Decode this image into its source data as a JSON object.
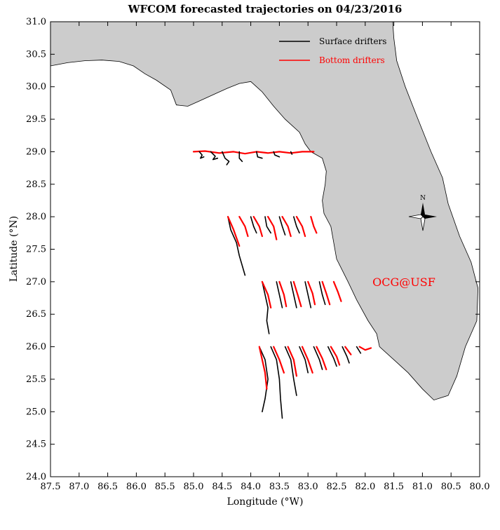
{
  "title": "WFCOM forecasted trajectories on 04/23/2016",
  "xlabel": "Longitude (°W)",
  "ylabel": "Latitude (°N)",
  "xlim": [
    87.5,
    80.0
  ],
  "ylim": [
    24.0,
    31.0
  ],
  "x_ticks": [
    "87.5",
    "87.0",
    "86.5",
    "86.0",
    "85.5",
    "85.0",
    "84.5",
    "84.0",
    "83.5",
    "83.0",
    "82.5",
    "82.0",
    "81.5",
    "81.0",
    "80.5",
    "80.0"
  ],
  "y_ticks": [
    "24.0",
    "24.5",
    "25.0",
    "25.5",
    "26.0",
    "26.5",
    "27.0",
    "27.5",
    "28.0",
    "28.5",
    "29.0",
    "29.5",
    "30.0",
    "30.5",
    "31.0"
  ],
  "legend": [
    {
      "label": "Surface drifters",
      "color": "#000000"
    },
    {
      "label": "Bottom drifters",
      "color": "#ff0000"
    }
  ],
  "compass_label": "N",
  "watermark": "OCG@USF",
  "colors": {
    "land": "#cccccc",
    "surface": "#000000",
    "bottom": "#ff0000",
    "watermark": "#ff0000"
  },
  "land_polygon": [
    [
      87.5,
      30.32
    ],
    [
      87.2,
      30.37
    ],
    [
      86.9,
      30.4
    ],
    [
      86.6,
      30.41
    ],
    [
      86.3,
      30.39
    ],
    [
      86.05,
      30.32
    ],
    [
      85.85,
      30.2
    ],
    [
      85.65,
      30.1
    ],
    [
      85.4,
      29.95
    ],
    [
      85.3,
      29.72
    ],
    [
      85.1,
      29.7
    ],
    [
      84.9,
      29.78
    ],
    [
      84.6,
      29.9
    ],
    [
      84.4,
      29.98
    ],
    [
      84.2,
      30.05
    ],
    [
      84.0,
      30.08
    ],
    [
      83.8,
      29.92
    ],
    [
      83.6,
      29.7
    ],
    [
      83.4,
      29.5
    ],
    [
      83.15,
      29.3
    ],
    [
      83.05,
      29.12
    ],
    [
      82.95,
      29.0
    ],
    [
      82.75,
      28.9
    ],
    [
      82.68,
      28.7
    ],
    [
      82.7,
      28.5
    ],
    [
      82.75,
      28.25
    ],
    [
      82.72,
      28.05
    ],
    [
      82.6,
      27.85
    ],
    [
      82.55,
      27.6
    ],
    [
      82.5,
      27.35
    ],
    [
      82.3,
      27.0
    ],
    [
      82.15,
      26.72
    ],
    [
      81.95,
      26.4
    ],
    [
      81.8,
      26.2
    ],
    [
      81.75,
      26.0
    ],
    [
      81.5,
      25.8
    ],
    [
      81.25,
      25.6
    ],
    [
      81.0,
      25.35
    ],
    [
      80.8,
      25.18
    ],
    [
      80.55,
      25.25
    ],
    [
      80.4,
      25.55
    ],
    [
      80.25,
      26.0
    ],
    [
      80.05,
      26.4
    ],
    [
      80.03,
      26.9
    ],
    [
      80.15,
      27.3
    ],
    [
      80.35,
      27.7
    ],
    [
      80.55,
      28.2
    ],
    [
      80.65,
      28.6
    ],
    [
      80.85,
      29.0
    ],
    [
      81.1,
      29.55
    ],
    [
      81.3,
      30.0
    ],
    [
      81.45,
      30.4
    ],
    [
      81.5,
      30.75
    ],
    [
      81.52,
      31.0
    ],
    [
      87.5,
      31.0
    ]
  ],
  "trajectories": [
    {
      "type": "bottom",
      "points": [
        [
          85.0,
          29.0
        ],
        [
          84.8,
          29.01
        ],
        [
          84.55,
          28.98
        ],
        [
          84.3,
          29.0
        ],
        [
          84.1,
          28.97
        ],
        [
          83.9,
          29.0
        ],
        [
          83.7,
          28.98
        ],
        [
          83.5,
          29.0
        ],
        [
          83.3,
          28.98
        ],
        [
          83.1,
          29.0
        ],
        [
          82.9,
          29.0
        ]
      ]
    },
    {
      "type": "surface",
      "points": [
        [
          84.9,
          29.0
        ],
        [
          84.85,
          28.95
        ],
        [
          84.88,
          28.9
        ],
        [
          84.82,
          28.92
        ]
      ]
    },
    {
      "type": "surface",
      "points": [
        [
          84.7,
          29.0
        ],
        [
          84.62,
          28.93
        ],
        [
          84.66,
          28.88
        ],
        [
          84.58,
          28.9
        ]
      ]
    },
    {
      "type": "surface",
      "points": [
        [
          84.5,
          29.0
        ],
        [
          84.45,
          28.9
        ],
        [
          84.38,
          28.85
        ],
        [
          84.42,
          28.8
        ]
      ]
    },
    {
      "type": "surface",
      "points": [
        [
          84.2,
          29.0
        ],
        [
          84.2,
          28.9
        ],
        [
          84.15,
          28.85
        ]
      ]
    },
    {
      "type": "surface",
      "points": [
        [
          83.9,
          29.0
        ],
        [
          83.88,
          28.92
        ],
        [
          83.8,
          28.9
        ]
      ]
    },
    {
      "type": "surface",
      "points": [
        [
          83.6,
          29.0
        ],
        [
          83.58,
          28.95
        ],
        [
          83.5,
          28.92
        ]
      ]
    },
    {
      "type": "surface",
      "points": [
        [
          83.3,
          29.0
        ],
        [
          83.28,
          28.96
        ]
      ]
    },
    {
      "type": "surface",
      "points": [
        [
          84.4,
          28.0
        ],
        [
          84.35,
          27.8
        ],
        [
          84.25,
          27.6
        ],
        [
          84.2,
          27.4
        ],
        [
          84.1,
          27.1
        ]
      ]
    },
    {
      "type": "bottom",
      "points": [
        [
          84.4,
          28.0
        ],
        [
          84.3,
          27.8
        ],
        [
          84.2,
          27.55
        ]
      ]
    },
    {
      "type": "bottom",
      "points": [
        [
          84.2,
          28.0
        ],
        [
          84.1,
          27.85
        ],
        [
          84.05,
          27.7
        ]
      ]
    },
    {
      "type": "surface",
      "points": [
        [
          84.0,
          28.0
        ],
        [
          83.95,
          27.85
        ],
        [
          83.9,
          27.75
        ]
      ]
    },
    {
      "type": "bottom",
      "points": [
        [
          83.95,
          28.0
        ],
        [
          83.85,
          27.85
        ],
        [
          83.8,
          27.7
        ]
      ]
    },
    {
      "type": "surface",
      "points": [
        [
          83.75,
          28.0
        ],
        [
          83.72,
          27.85
        ],
        [
          83.65,
          27.75
        ]
      ]
    },
    {
      "type": "bottom",
      "points": [
        [
          83.7,
          28.0
        ],
        [
          83.6,
          27.85
        ],
        [
          83.55,
          27.65
        ]
      ]
    },
    {
      "type": "surface",
      "points": [
        [
          83.5,
          28.0
        ],
        [
          83.45,
          27.85
        ],
        [
          83.4,
          27.72
        ]
      ]
    },
    {
      "type": "bottom",
      "points": [
        [
          83.45,
          28.0
        ],
        [
          83.35,
          27.85
        ],
        [
          83.3,
          27.7
        ]
      ]
    },
    {
      "type": "surface",
      "points": [
        [
          83.25,
          28.0
        ],
        [
          83.2,
          27.85
        ],
        [
          83.15,
          27.75
        ]
      ]
    },
    {
      "type": "bottom",
      "points": [
        [
          83.2,
          28.0
        ],
        [
          83.1,
          27.85
        ],
        [
          83.05,
          27.7
        ]
      ]
    },
    {
      "type": "bottom",
      "points": [
        [
          82.95,
          28.0
        ],
        [
          82.9,
          27.85
        ],
        [
          82.85,
          27.75
        ]
      ]
    },
    {
      "type": "surface",
      "points": [
        [
          83.8,
          27.0
        ],
        [
          83.75,
          26.8
        ],
        [
          83.7,
          26.6
        ],
        [
          83.72,
          26.4
        ],
        [
          83.68,
          26.2
        ]
      ]
    },
    {
      "type": "bottom",
      "points": [
        [
          83.8,
          27.0
        ],
        [
          83.7,
          26.8
        ],
        [
          83.65,
          26.6
        ]
      ]
    },
    {
      "type": "surface",
      "points": [
        [
          83.55,
          27.0
        ],
        [
          83.5,
          26.8
        ],
        [
          83.45,
          26.6
        ]
      ]
    },
    {
      "type": "bottom",
      "points": [
        [
          83.5,
          27.0
        ],
        [
          83.42,
          26.8
        ],
        [
          83.38,
          26.62
        ]
      ]
    },
    {
      "type": "surface",
      "points": [
        [
          83.3,
          27.0
        ],
        [
          83.25,
          26.8
        ],
        [
          83.2,
          26.6
        ]
      ]
    },
    {
      "type": "bottom",
      "points": [
        [
          83.25,
          27.0
        ],
        [
          83.18,
          26.8
        ],
        [
          83.12,
          26.62
        ]
      ]
    },
    {
      "type": "surface",
      "points": [
        [
          83.05,
          27.0
        ],
        [
          83.0,
          26.8
        ],
        [
          82.95,
          26.6
        ]
      ]
    },
    {
      "type": "bottom",
      "points": [
        [
          83.0,
          27.0
        ],
        [
          82.92,
          26.82
        ],
        [
          82.88,
          26.65
        ]
      ]
    },
    {
      "type": "surface",
      "points": [
        [
          82.8,
          27.0
        ],
        [
          82.75,
          26.8
        ],
        [
          82.7,
          26.65
        ]
      ]
    },
    {
      "type": "bottom",
      "points": [
        [
          82.75,
          27.0
        ],
        [
          82.68,
          26.82
        ],
        [
          82.62,
          26.65
        ]
      ]
    },
    {
      "type": "bottom",
      "points": [
        [
          82.55,
          27.0
        ],
        [
          82.48,
          26.85
        ],
        [
          82.42,
          26.7
        ]
      ]
    },
    {
      "type": "surface",
      "points": [
        [
          83.85,
          26.0
        ],
        [
          83.75,
          25.8
        ],
        [
          83.7,
          25.5
        ],
        [
          83.75,
          25.2
        ],
        [
          83.8,
          25.0
        ]
      ]
    },
    {
      "type": "bottom",
      "points": [
        [
          83.85,
          26.0
        ],
        [
          83.8,
          25.8
        ],
        [
          83.75,
          25.6
        ],
        [
          83.72,
          25.35
        ]
      ]
    },
    {
      "type": "surface",
      "points": [
        [
          83.65,
          26.0
        ],
        [
          83.55,
          25.8
        ],
        [
          83.5,
          25.5
        ],
        [
          83.48,
          25.2
        ],
        [
          83.45,
          24.9
        ]
      ]
    },
    {
      "type": "bottom",
      "points": [
        [
          83.6,
          26.0
        ],
        [
          83.5,
          25.8
        ],
        [
          83.42,
          25.6
        ]
      ]
    },
    {
      "type": "surface",
      "points": [
        [
          83.4,
          26.0
        ],
        [
          83.3,
          25.8
        ],
        [
          83.25,
          25.5
        ],
        [
          83.2,
          25.25
        ]
      ]
    },
    {
      "type": "bottom",
      "points": [
        [
          83.35,
          26.0
        ],
        [
          83.25,
          25.8
        ],
        [
          83.2,
          25.55
        ]
      ]
    },
    {
      "type": "surface",
      "points": [
        [
          83.15,
          26.0
        ],
        [
          83.05,
          25.8
        ],
        [
          83.0,
          25.6
        ]
      ]
    },
    {
      "type": "bottom",
      "points": [
        [
          83.1,
          26.0
        ],
        [
          83.0,
          25.8
        ],
        [
          82.92,
          25.6
        ]
      ]
    },
    {
      "type": "surface",
      "points": [
        [
          82.9,
          26.0
        ],
        [
          82.8,
          25.8
        ],
        [
          82.75,
          25.65
        ]
      ]
    },
    {
      "type": "bottom",
      "points": [
        [
          82.85,
          26.0
        ],
        [
          82.75,
          25.82
        ],
        [
          82.68,
          25.65
        ]
      ]
    },
    {
      "type": "surface",
      "points": [
        [
          82.65,
          26.0
        ],
        [
          82.55,
          25.82
        ],
        [
          82.5,
          25.7
        ]
      ]
    },
    {
      "type": "bottom",
      "points": [
        [
          82.6,
          26.0
        ],
        [
          82.5,
          25.85
        ],
        [
          82.45,
          25.72
        ]
      ]
    },
    {
      "type": "surface",
      "points": [
        [
          82.4,
          26.0
        ],
        [
          82.32,
          25.85
        ],
        [
          82.28,
          25.75
        ]
      ]
    },
    {
      "type": "bottom",
      "points": [
        [
          82.35,
          26.0
        ],
        [
          82.25,
          25.88
        ]
      ]
    },
    {
      "type": "bottom",
      "points": [
        [
          82.1,
          26.0
        ],
        [
          82.0,
          25.95
        ],
        [
          81.9,
          25.98
        ]
      ]
    },
    {
      "type": "surface",
      "points": [
        [
          82.15,
          26.0
        ],
        [
          82.08,
          25.9
        ]
      ]
    }
  ]
}
